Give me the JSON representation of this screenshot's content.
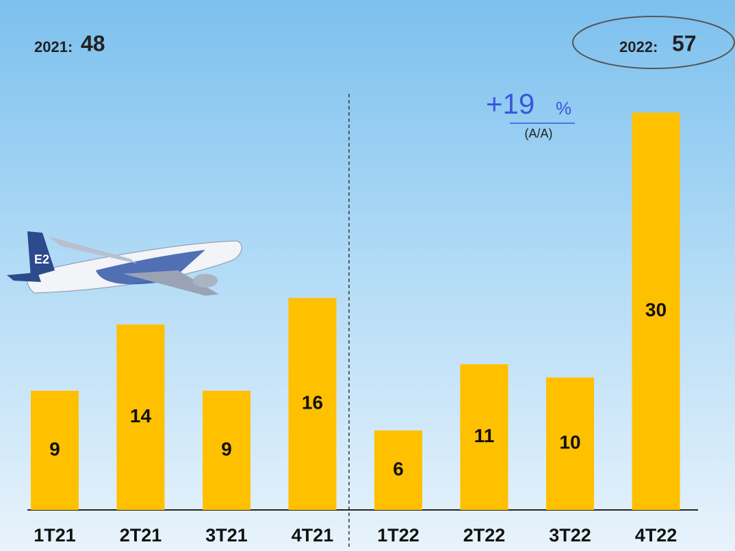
{
  "chart_data": {
    "type": "bar",
    "categories": [
      "1T21",
      "2T21",
      "3T21",
      "4T21",
      "1T22",
      "2T22",
      "3T22",
      "4T22"
    ],
    "values": [
      9,
      14,
      9,
      16,
      6,
      11,
      10,
      30
    ],
    "color": "#ffc000",
    "year_totals": [
      {
        "label": "2021:",
        "value": 48
      },
      {
        "label": "2022:",
        "value": 57
      }
    ],
    "growth": {
      "text": "+19",
      "unit": "%",
      "basis": "(A/A)"
    }
  }
}
